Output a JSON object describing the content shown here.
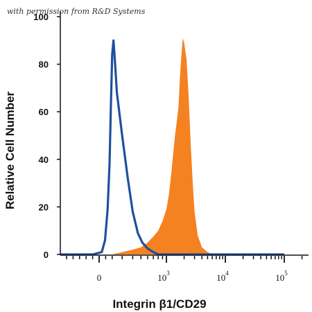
{
  "watermark": "with permission from R&D Systems",
  "chart_data": {
    "type": "area",
    "xlabel": "Integrin β1/CD29",
    "ylabel": "Relative Cell Number",
    "x_scale": "biexponential",
    "ylim": [
      0,
      100
    ],
    "y_ticks": [
      "0",
      "20",
      "40",
      "60",
      "80",
      "100"
    ],
    "x_ticks": [
      {
        "value": 0,
        "base": "0",
        "exp": ""
      },
      {
        "value": 1000,
        "base": "10",
        "exp": "3"
      },
      {
        "value": 10000,
        "base": "10",
        "exp": "4"
      },
      {
        "value": 100000,
        "base": "10",
        "exp": "5"
      }
    ],
    "grid": false,
    "legend": "none",
    "series": [
      {
        "style": "outline",
        "color": "#1f4fa0",
        "x": [
          -600,
          -100,
          40,
          90,
          130,
          160,
          180,
          200,
          220,
          240,
          260,
          300,
          350,
          400,
          460,
          520,
          600,
          700,
          800,
          1000,
          2000,
          10000,
          100000
        ],
        "y": [
          0,
          0,
          1,
          6,
          19,
          38,
          62,
          84,
          90,
          82,
          68,
          50,
          32,
          18,
          9,
          5,
          2.5,
          1,
          0,
          0,
          0,
          0,
          0
        ]
      },
      {
        "style": "filled",
        "color": "#f58220",
        "x": [
          -600,
          200,
          300,
          400,
          500,
          600,
          700,
          800,
          900,
          1000,
          1100,
          1200,
          1300,
          1400,
          1500,
          1600,
          1700,
          1800,
          1900,
          2000,
          2200,
          2400,
          2600,
          2800,
          3000,
          3400,
          4000,
          5000,
          6000,
          100000
        ],
        "y": [
          0,
          0,
          1,
          2,
          3,
          5,
          7.5,
          10,
          14,
          19,
          25,
          33,
          42,
          50,
          56,
          62,
          75,
          84,
          91,
          89,
          82,
          65,
          45,
          30,
          18,
          8,
          3,
          1,
          0,
          0
        ]
      }
    ]
  }
}
